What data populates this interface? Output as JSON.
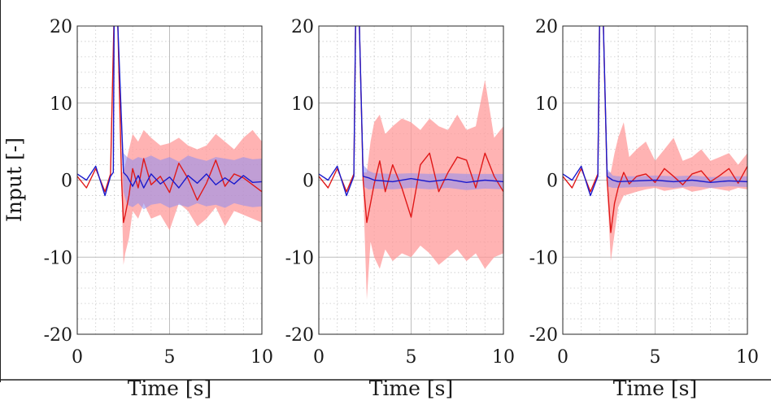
{
  "chart_data": [
    {
      "type": "line",
      "xlabel": "Time [s]",
      "ylabel": "Input [-]",
      "xlim": [
        0,
        10
      ],
      "ylim": [
        -20,
        20
      ],
      "xticks": [
        "0",
        "5",
        "10"
      ],
      "yticks": [
        "20",
        "10",
        "0",
        "-10",
        "-20"
      ],
      "grid": true,
      "minor_grid": true,
      "series": [
        {
          "color": "#e01818",
          "band_color": "#ff9a9a",
          "x": [
            0.0,
            0.5,
            1.0,
            1.5,
            1.8,
            2.0,
            2.2,
            2.4,
            2.5,
            2.6,
            2.8,
            3.0,
            3.3,
            3.6,
            4.0,
            4.5,
            5.0,
            5.5,
            6.0,
            6.5,
            7.0,
            7.5,
            8.0,
            8.5,
            9.0,
            9.5,
            10.0
          ],
          "values": [
            0.5,
            -1.0,
            1.5,
            -1.5,
            0.8,
            22,
            20,
            0.0,
            -5.5,
            -4.5,
            -2.0,
            1.5,
            -1.0,
            2.8,
            -0.6,
            0.5,
            -1.6,
            2.2,
            0.2,
            -2.6,
            -0.4,
            2.6,
            -0.8,
            0.8,
            0.3,
            -0.6,
            -1.5
          ],
          "band_upper": [
            0.5,
            -1.0,
            1.5,
            -1.5,
            0.8,
            22,
            20,
            1.0,
            1.0,
            2.0,
            4.0,
            6.0,
            5.0,
            6.5,
            5.5,
            4.5,
            4.8,
            5.5,
            4.5,
            4.0,
            4.5,
            6.0,
            5.0,
            4.0,
            5.5,
            6.5,
            5.0
          ],
          "band_lower": [
            0.5,
            -1.0,
            1.5,
            -1.5,
            0.8,
            22,
            20,
            -1.0,
            -11.0,
            -9.5,
            -7.5,
            -4.0,
            -5.0,
            -3.0,
            -5.0,
            -4.5,
            -6.5,
            -3.0,
            -4.0,
            -6.0,
            -5.0,
            -3.5,
            -6.0,
            -4.0,
            -4.5,
            -5.0,
            -5.5
          ]
        },
        {
          "color": "#1a1acc",
          "band_color": "#8c8cf0",
          "x": [
            0.0,
            0.5,
            1.0,
            1.5,
            1.8,
            1.95,
            2.0,
            2.2,
            2.5,
            2.7,
            3.0,
            3.3,
            3.6,
            4.0,
            4.5,
            5.0,
            5.5,
            6.0,
            6.5,
            7.0,
            7.5,
            8.0,
            8.5,
            9.0,
            9.5,
            10.0
          ],
          "values": [
            0.8,
            0.0,
            1.8,
            -2.0,
            0.5,
            1.0,
            22,
            20,
            1.0,
            0.5,
            -0.8,
            0.6,
            -1.0,
            0.8,
            -0.5,
            0.4,
            -1.0,
            0.6,
            -0.4,
            0.8,
            -0.6,
            0.3,
            -0.5,
            0.6,
            -0.3,
            -0.2
          ],
          "band_upper": [
            0.8,
            0.0,
            1.8,
            -2.0,
            0.5,
            1.0,
            22,
            20,
            3.5,
            3.0,
            2.6,
            3.0,
            2.8,
            3.2,
            2.6,
            3.0,
            2.4,
            3.2,
            2.8,
            2.5,
            3.0,
            2.8,
            2.6,
            3.0,
            2.7,
            2.8
          ],
          "band_lower": [
            0.8,
            0.0,
            1.8,
            -2.0,
            0.5,
            1.0,
            22,
            20,
            -1.5,
            -3.2,
            -3.5,
            -3.0,
            -3.8,
            -3.2,
            -3.0,
            -3.6,
            -3.2,
            -3.5,
            -3.0,
            -3.4,
            -3.2,
            -3.6,
            -3.0,
            -3.3,
            -3.5,
            -3.4
          ]
        }
      ]
    },
    {
      "type": "line",
      "xlabel": "Time [s]",
      "xlim": [
        0,
        10
      ],
      "ylim": [
        -20,
        20
      ],
      "xticks": [
        "0",
        "5",
        "10"
      ],
      "yticks": [
        "20",
        "10",
        "0",
        "-10",
        "-20"
      ],
      "grid": true,
      "minor_grid": true,
      "series": [
        {
          "color": "#e01818",
          "band_color": "#ff9a9a",
          "x": [
            0.0,
            0.5,
            1.0,
            1.5,
            1.9,
            2.0,
            2.2,
            2.4,
            2.6,
            2.8,
            3.0,
            3.3,
            3.6,
            4.0,
            4.5,
            5.0,
            5.5,
            6.0,
            6.5,
            7.0,
            7.5,
            8.0,
            8.5,
            9.0,
            9.5,
            10.0
          ],
          "values": [
            0.5,
            -1.0,
            1.5,
            -1.5,
            0.8,
            22,
            20,
            0.0,
            -5.5,
            -3.0,
            -0.5,
            2.5,
            -1.5,
            2.0,
            -1.0,
            -4.8,
            2.0,
            3.5,
            -1.5,
            1.0,
            3.0,
            2.6,
            -1.0,
            3.5,
            0.5,
            -1.5
          ],
          "band_upper": [
            0.5,
            -1.0,
            1.5,
            -1.5,
            0.8,
            22,
            20,
            1.0,
            1.0,
            5.0,
            7.5,
            8.5,
            6.0,
            7.0,
            8.0,
            7.5,
            6.5,
            8.0,
            7.0,
            6.5,
            8.5,
            6.5,
            7.0,
            13.0,
            5.5,
            7.0
          ],
          "band_lower": [
            0.5,
            -1.0,
            1.5,
            -1.5,
            0.8,
            22,
            20,
            -1.0,
            -15.5,
            -8.0,
            -10.0,
            -11.5,
            -9.0,
            -10.5,
            -9.5,
            -10.0,
            -8.5,
            -9.5,
            -11.0,
            -10.0,
            -9.0,
            -10.5,
            -9.5,
            -11.5,
            -10.0,
            -9.5
          ]
        },
        {
          "color": "#1a1acc",
          "band_color": "#8c8cf0",
          "x": [
            0.0,
            0.5,
            1.0,
            1.5,
            1.9,
            2.0,
            2.2,
            2.4,
            2.7,
            3.0,
            4.0,
            5.0,
            6.0,
            7.0,
            8.0,
            9.0,
            10.0
          ],
          "values": [
            0.8,
            0.0,
            1.8,
            -2.0,
            0.5,
            22,
            20,
            0.5,
            0.3,
            0.0,
            -0.2,
            0.2,
            -0.2,
            0.1,
            -0.3,
            0.0,
            -0.2
          ],
          "band_upper": [
            0.8,
            0.0,
            1.8,
            -2.0,
            0.5,
            22,
            20,
            2.0,
            1.2,
            0.9,
            0.8,
            0.9,
            0.8,
            0.9,
            0.8,
            0.8,
            0.8
          ],
          "band_lower": [
            0.8,
            0.0,
            1.8,
            -2.0,
            0.5,
            22,
            20,
            -0.8,
            -1.2,
            -1.1,
            -1.2,
            -1.0,
            -1.2,
            -1.0,
            -1.3,
            -1.1,
            -1.2
          ]
        }
      ]
    },
    {
      "type": "line",
      "xlabel": "Time [s]",
      "xlim": [
        0,
        10
      ],
      "ylim": [
        -20,
        20
      ],
      "xticks": [
        "0",
        "5",
        "10"
      ],
      "yticks": [
        "20",
        "10",
        "0",
        "-10",
        "-20"
      ],
      "grid": true,
      "minor_grid": true,
      "series": [
        {
          "color": "#e01818",
          "band_color": "#ff9a9a",
          "x": [
            0.0,
            0.5,
            1.0,
            1.5,
            1.9,
            2.0,
            2.2,
            2.4,
            2.6,
            2.8,
            3.0,
            3.3,
            3.6,
            4.0,
            4.5,
            5.0,
            5.5,
            6.0,
            6.5,
            7.0,
            7.5,
            8.0,
            8.5,
            9.0,
            9.5,
            10.0
          ],
          "values": [
            0.5,
            -1.0,
            1.5,
            -1.5,
            0.8,
            22,
            20,
            0.0,
            -6.8,
            -3.0,
            -1.0,
            1.0,
            -0.5,
            0.5,
            0.8,
            -0.3,
            1.5,
            0.5,
            -0.6,
            0.8,
            1.2,
            -0.2,
            0.6,
            1.5,
            -0.4,
            1.8
          ],
          "band_upper": [
            0.5,
            -1.0,
            1.5,
            -1.5,
            0.8,
            22,
            20,
            1.0,
            1.0,
            3.5,
            5.5,
            7.5,
            3.0,
            4.0,
            5.0,
            2.5,
            4.0,
            5.5,
            2.5,
            3.0,
            4.0,
            2.5,
            3.0,
            3.5,
            2.0,
            3.5
          ],
          "band_lower": [
            0.5,
            -1.0,
            1.5,
            -1.5,
            0.8,
            22,
            20,
            -1.0,
            -10.5,
            -7.0,
            -3.5,
            -2.0,
            -1.8,
            -1.5,
            -1.2,
            -1.0,
            -1.4,
            -1.2,
            -1.0,
            -1.5,
            -1.3,
            -1.0,
            -1.2,
            -1.4,
            -1.0,
            -1.2
          ]
        },
        {
          "color": "#1a1acc",
          "band_color": "#8c8cf0",
          "x": [
            0.0,
            0.5,
            1.0,
            1.5,
            1.9,
            2.0,
            2.2,
            2.4,
            2.7,
            3.0,
            4.0,
            5.0,
            6.0,
            7.0,
            8.0,
            9.0,
            10.0
          ],
          "values": [
            0.8,
            0.0,
            1.8,
            -2.0,
            0.5,
            22,
            20,
            0.5,
            0.0,
            -0.2,
            -0.1,
            0.0,
            -0.2,
            0.0,
            -0.3,
            -0.1,
            -0.2
          ],
          "band_upper": [
            0.8,
            0.0,
            1.8,
            -2.0,
            0.5,
            22,
            20,
            1.5,
            0.6,
            0.5,
            0.5,
            0.6,
            0.5,
            0.6,
            0.4,
            0.5,
            0.5
          ],
          "band_lower": [
            0.8,
            0.0,
            1.8,
            -2.0,
            0.5,
            22,
            20,
            -0.8,
            -1.0,
            -1.0,
            -0.9,
            -0.8,
            -1.0,
            -0.8,
            -1.0,
            -0.8,
            -0.9
          ]
        }
      ]
    }
  ]
}
